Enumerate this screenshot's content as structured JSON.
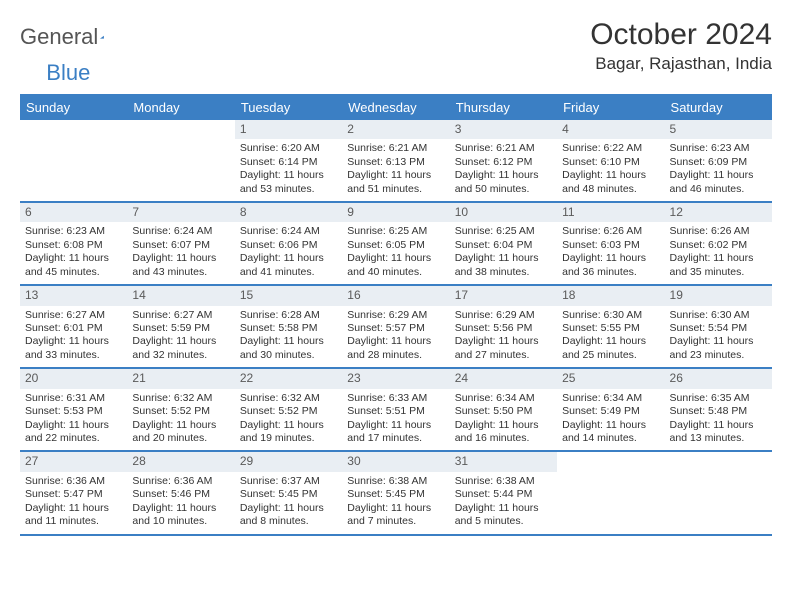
{
  "logo": {
    "text_a": "General",
    "text_b": "Blue"
  },
  "title": "October 2024",
  "location": "Bagar, Rajasthan, India",
  "colors": {
    "header_bar": "#3b7fc4",
    "daynum_bg": "#e9eef3",
    "text": "#333333",
    "page_bg": "#ffffff"
  },
  "day_names": [
    "Sunday",
    "Monday",
    "Tuesday",
    "Wednesday",
    "Thursday",
    "Friday",
    "Saturday"
  ],
  "weeks": [
    [
      {
        "n": "",
        "sr": "",
        "ss": "",
        "dl": ""
      },
      {
        "n": "",
        "sr": "",
        "ss": "",
        "dl": ""
      },
      {
        "n": "1",
        "sr": "Sunrise: 6:20 AM",
        "ss": "Sunset: 6:14 PM",
        "dl": "Daylight: 11 hours and 53 minutes."
      },
      {
        "n": "2",
        "sr": "Sunrise: 6:21 AM",
        "ss": "Sunset: 6:13 PM",
        "dl": "Daylight: 11 hours and 51 minutes."
      },
      {
        "n": "3",
        "sr": "Sunrise: 6:21 AM",
        "ss": "Sunset: 6:12 PM",
        "dl": "Daylight: 11 hours and 50 minutes."
      },
      {
        "n": "4",
        "sr": "Sunrise: 6:22 AM",
        "ss": "Sunset: 6:10 PM",
        "dl": "Daylight: 11 hours and 48 minutes."
      },
      {
        "n": "5",
        "sr": "Sunrise: 6:23 AM",
        "ss": "Sunset: 6:09 PM",
        "dl": "Daylight: 11 hours and 46 minutes."
      }
    ],
    [
      {
        "n": "6",
        "sr": "Sunrise: 6:23 AM",
        "ss": "Sunset: 6:08 PM",
        "dl": "Daylight: 11 hours and 45 minutes."
      },
      {
        "n": "7",
        "sr": "Sunrise: 6:24 AM",
        "ss": "Sunset: 6:07 PM",
        "dl": "Daylight: 11 hours and 43 minutes."
      },
      {
        "n": "8",
        "sr": "Sunrise: 6:24 AM",
        "ss": "Sunset: 6:06 PM",
        "dl": "Daylight: 11 hours and 41 minutes."
      },
      {
        "n": "9",
        "sr": "Sunrise: 6:25 AM",
        "ss": "Sunset: 6:05 PM",
        "dl": "Daylight: 11 hours and 40 minutes."
      },
      {
        "n": "10",
        "sr": "Sunrise: 6:25 AM",
        "ss": "Sunset: 6:04 PM",
        "dl": "Daylight: 11 hours and 38 minutes."
      },
      {
        "n": "11",
        "sr": "Sunrise: 6:26 AM",
        "ss": "Sunset: 6:03 PM",
        "dl": "Daylight: 11 hours and 36 minutes."
      },
      {
        "n": "12",
        "sr": "Sunrise: 6:26 AM",
        "ss": "Sunset: 6:02 PM",
        "dl": "Daylight: 11 hours and 35 minutes."
      }
    ],
    [
      {
        "n": "13",
        "sr": "Sunrise: 6:27 AM",
        "ss": "Sunset: 6:01 PM",
        "dl": "Daylight: 11 hours and 33 minutes."
      },
      {
        "n": "14",
        "sr": "Sunrise: 6:27 AM",
        "ss": "Sunset: 5:59 PM",
        "dl": "Daylight: 11 hours and 32 minutes."
      },
      {
        "n": "15",
        "sr": "Sunrise: 6:28 AM",
        "ss": "Sunset: 5:58 PM",
        "dl": "Daylight: 11 hours and 30 minutes."
      },
      {
        "n": "16",
        "sr": "Sunrise: 6:29 AM",
        "ss": "Sunset: 5:57 PM",
        "dl": "Daylight: 11 hours and 28 minutes."
      },
      {
        "n": "17",
        "sr": "Sunrise: 6:29 AM",
        "ss": "Sunset: 5:56 PM",
        "dl": "Daylight: 11 hours and 27 minutes."
      },
      {
        "n": "18",
        "sr": "Sunrise: 6:30 AM",
        "ss": "Sunset: 5:55 PM",
        "dl": "Daylight: 11 hours and 25 minutes."
      },
      {
        "n": "19",
        "sr": "Sunrise: 6:30 AM",
        "ss": "Sunset: 5:54 PM",
        "dl": "Daylight: 11 hours and 23 minutes."
      }
    ],
    [
      {
        "n": "20",
        "sr": "Sunrise: 6:31 AM",
        "ss": "Sunset: 5:53 PM",
        "dl": "Daylight: 11 hours and 22 minutes."
      },
      {
        "n": "21",
        "sr": "Sunrise: 6:32 AM",
        "ss": "Sunset: 5:52 PM",
        "dl": "Daylight: 11 hours and 20 minutes."
      },
      {
        "n": "22",
        "sr": "Sunrise: 6:32 AM",
        "ss": "Sunset: 5:52 PM",
        "dl": "Daylight: 11 hours and 19 minutes."
      },
      {
        "n": "23",
        "sr": "Sunrise: 6:33 AM",
        "ss": "Sunset: 5:51 PM",
        "dl": "Daylight: 11 hours and 17 minutes."
      },
      {
        "n": "24",
        "sr": "Sunrise: 6:34 AM",
        "ss": "Sunset: 5:50 PM",
        "dl": "Daylight: 11 hours and 16 minutes."
      },
      {
        "n": "25",
        "sr": "Sunrise: 6:34 AM",
        "ss": "Sunset: 5:49 PM",
        "dl": "Daylight: 11 hours and 14 minutes."
      },
      {
        "n": "26",
        "sr": "Sunrise: 6:35 AM",
        "ss": "Sunset: 5:48 PM",
        "dl": "Daylight: 11 hours and 13 minutes."
      }
    ],
    [
      {
        "n": "27",
        "sr": "Sunrise: 6:36 AM",
        "ss": "Sunset: 5:47 PM",
        "dl": "Daylight: 11 hours and 11 minutes."
      },
      {
        "n": "28",
        "sr": "Sunrise: 6:36 AM",
        "ss": "Sunset: 5:46 PM",
        "dl": "Daylight: 11 hours and 10 minutes."
      },
      {
        "n": "29",
        "sr": "Sunrise: 6:37 AM",
        "ss": "Sunset: 5:45 PM",
        "dl": "Daylight: 11 hours and 8 minutes."
      },
      {
        "n": "30",
        "sr": "Sunrise: 6:38 AM",
        "ss": "Sunset: 5:45 PM",
        "dl": "Daylight: 11 hours and 7 minutes."
      },
      {
        "n": "31",
        "sr": "Sunrise: 6:38 AM",
        "ss": "Sunset: 5:44 PM",
        "dl": "Daylight: 11 hours and 5 minutes."
      },
      {
        "n": "",
        "sr": "",
        "ss": "",
        "dl": ""
      },
      {
        "n": "",
        "sr": "",
        "ss": "",
        "dl": ""
      }
    ]
  ]
}
